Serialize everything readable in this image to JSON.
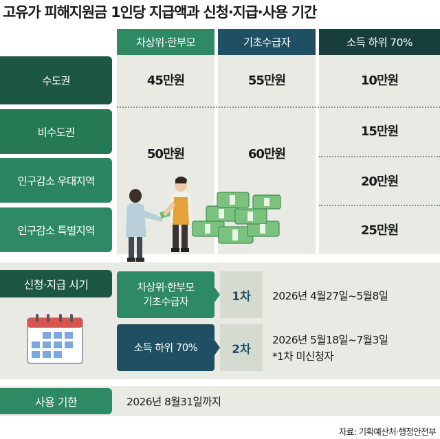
{
  "title": "고유가 피해지원금 1인당 지급액과 신청·지급·사용 기간",
  "columns": [
    "차상위·한부모",
    "기초수급자",
    "소득 하위 70%"
  ],
  "rows": [
    {
      "label": "수도권",
      "col1": "45만원",
      "col2": "55만원",
      "col3": "10만원"
    },
    {
      "label": "비수도권",
      "col3": "15만원"
    },
    {
      "label": "인구감소 우대지역",
      "col3": "20만원"
    },
    {
      "label": "인구감소 특별지역",
      "col3": "25만원"
    }
  ],
  "merged": {
    "col1": "50만원",
    "col2": "60만원"
  },
  "schedule": {
    "label": "신청·지급 시기",
    "first": {
      "group": "차상위·한부모\n기초수급자",
      "stage": "1차",
      "date": "2026년 4월27일~5월8일"
    },
    "second": {
      "group": "소득 하위 70%",
      "stage": "2차",
      "date": "2026년 5월18일~7월3일",
      "note": "*1차 미신청자"
    }
  },
  "deadline": {
    "label": "사용 기한",
    "date": "2026년 8월31일까지"
  },
  "source": "자료: 기획예산처·행정안전부",
  "colors": {
    "green": "#2e8a64",
    "dark_green": "#1c5744",
    "navy": "#1e4f62",
    "deep": "#173e3a",
    "band": "#e8eae3"
  },
  "icons": [
    "calendar-icon",
    "money-stack-illustration",
    "people-handing-money-illustration"
  ]
}
